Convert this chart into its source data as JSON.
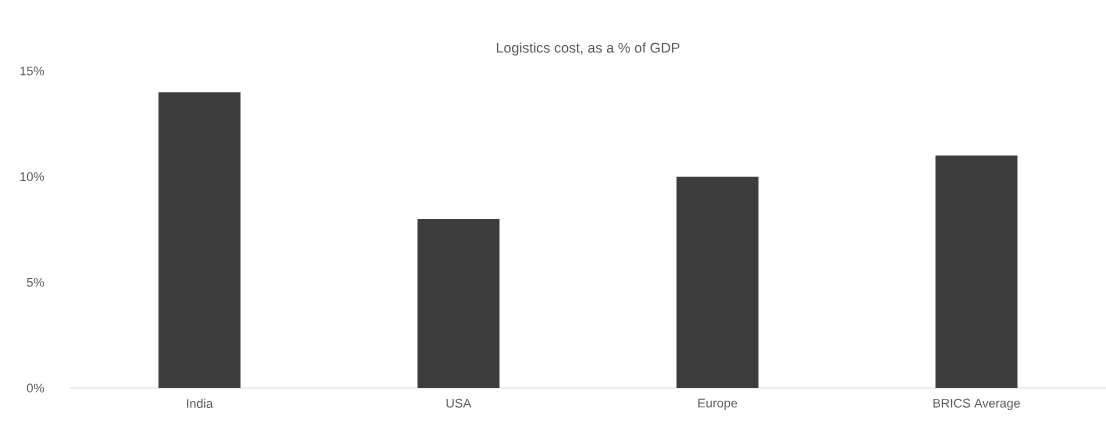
{
  "chart_data": {
    "type": "bar",
    "title": "Logistics cost, as a % of GDP",
    "categories": [
      "India",
      "USA",
      "Europe",
      "BRICS Average"
    ],
    "values": [
      14,
      8,
      10,
      11
    ],
    "color": "#3c3c3c",
    "ylim": [
      0,
      15
    ],
    "yticks": [
      {
        "value": 0,
        "label": "0%"
      },
      {
        "value": 5,
        "label": "5%"
      },
      {
        "value": 10,
        "label": "10%"
      },
      {
        "value": 15,
        "label": "15%"
      }
    ],
    "grid": false
  }
}
